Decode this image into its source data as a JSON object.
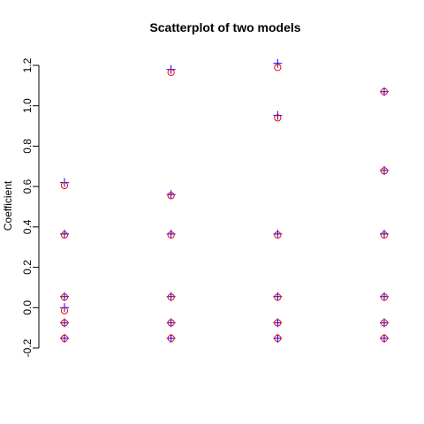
{
  "chart_data": {
    "type": "scatter",
    "title": "Scatterplot of two models",
    "xlabel": "",
    "ylabel": "Coefficient",
    "xlim": [
      1,
      4
    ],
    "ylim": [
      -0.2,
      1.2
    ],
    "yticks": [
      -0.2,
      0.0,
      0.2,
      0.4,
      0.6,
      0.8,
      1.0,
      1.2
    ],
    "ytick_labels": [
      "-0.2",
      "0.0",
      "0.2",
      "0.4",
      "0.6",
      "0.8",
      "1.0",
      "1.2"
    ],
    "x_axis_shown": false,
    "grid": false,
    "legend": "none",
    "series": [
      {
        "marker": "plus",
        "color": "#0000FF",
        "points": [
          {
            "x": 1,
            "y": 0.62
          },
          {
            "x": 1,
            "y": 0.365
          },
          {
            "x": 1,
            "y": 0.055
          },
          {
            "x": 1,
            "y": 0.0
          },
          {
            "x": 1,
            "y": -0.075
          },
          {
            "x": 1,
            "y": -0.152
          },
          {
            "x": 2,
            "y": 1.18
          },
          {
            "x": 2,
            "y": 0.56
          },
          {
            "x": 2,
            "y": 0.365
          },
          {
            "x": 2,
            "y": 0.055
          },
          {
            "x": 2,
            "y": -0.075
          },
          {
            "x": 2,
            "y": -0.152
          },
          {
            "x": 3,
            "y": 1.21
          },
          {
            "x": 3,
            "y": 0.952
          },
          {
            "x": 3,
            "y": 0.365
          },
          {
            "x": 3,
            "y": 0.055
          },
          {
            "x": 3,
            "y": -0.075
          },
          {
            "x": 3,
            "y": -0.152
          },
          {
            "x": 4,
            "y": 1.07
          },
          {
            "x": 4,
            "y": 0.68
          },
          {
            "x": 4,
            "y": 0.365
          },
          {
            "x": 4,
            "y": 0.055
          },
          {
            "x": 4,
            "y": -0.075
          },
          {
            "x": 4,
            "y": -0.152
          }
        ]
      },
      {
        "marker": "circle",
        "color": "#FF0000",
        "points": [
          {
            "x": 1,
            "y": 0.605
          },
          {
            "x": 1,
            "y": 0.36
          },
          {
            "x": 1,
            "y": 0.052
          },
          {
            "x": 1,
            "y": -0.015
          },
          {
            "x": 1,
            "y": -0.075
          },
          {
            "x": 1,
            "y": -0.152
          },
          {
            "x": 2,
            "y": 1.165
          },
          {
            "x": 2,
            "y": 0.555
          },
          {
            "x": 2,
            "y": 0.36
          },
          {
            "x": 2,
            "y": 0.052
          },
          {
            "x": 2,
            "y": -0.075
          },
          {
            "x": 2,
            "y": -0.152
          },
          {
            "x": 3,
            "y": 1.19
          },
          {
            "x": 3,
            "y": 0.94
          },
          {
            "x": 3,
            "y": 0.36
          },
          {
            "x": 3,
            "y": 0.052
          },
          {
            "x": 3,
            "y": -0.075
          },
          {
            "x": 3,
            "y": -0.152
          },
          {
            "x": 4,
            "y": 1.07
          },
          {
            "x": 4,
            "y": 0.678
          },
          {
            "x": 4,
            "y": 0.36
          },
          {
            "x": 4,
            "y": 0.052
          },
          {
            "x": 4,
            "y": -0.075
          },
          {
            "x": 4,
            "y": -0.152
          }
        ]
      }
    ]
  }
}
